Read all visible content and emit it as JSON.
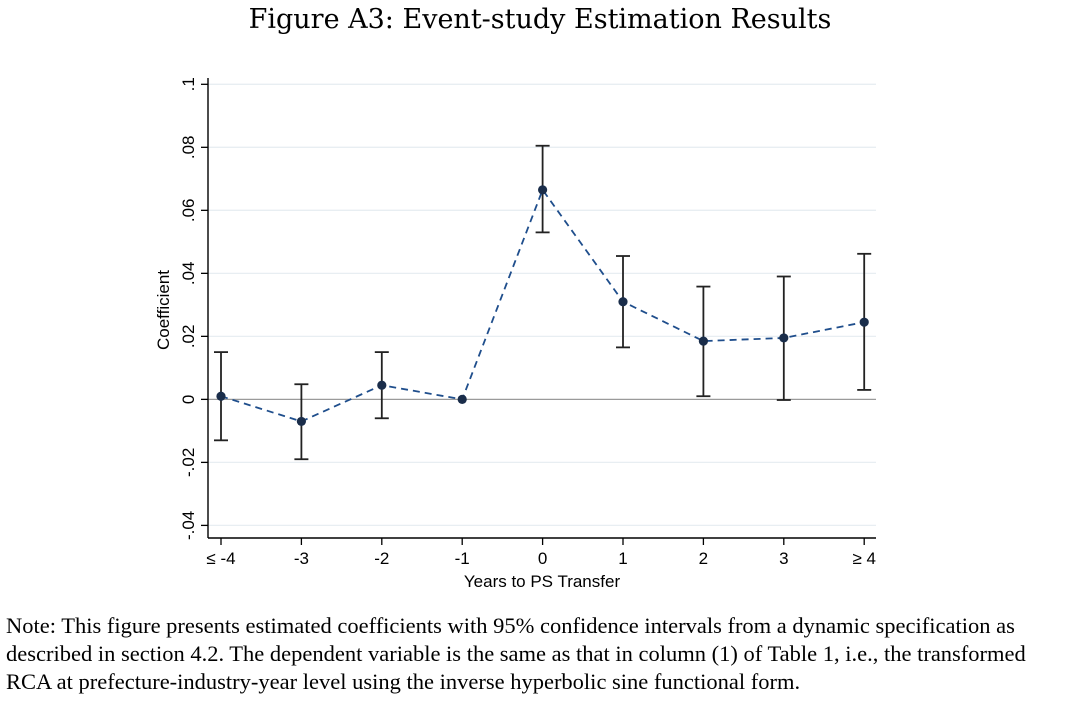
{
  "figure": {
    "title": "Figure A3: Event-study Estimation Results",
    "note": "Note: This figure presents estimated coefficients with 95% confidence intervals from a dynamic specification as described in section 4.2. The dependent variable is the same as that in column (1) of Table 1, i.e., the transformed RCA at prefecture-industry-year level using the inverse hyperbolic sine functional form."
  },
  "chart_data": {
    "type": "scatter",
    "title": "",
    "xlabel": "Years to PS Transfer",
    "ylabel": "Coefficient",
    "categories": [
      "≤ -4",
      "-3",
      "-2",
      "-1",
      "0",
      "1",
      "2",
      "3",
      "≥ 4"
    ],
    "y_ticks": [
      -0.04,
      -0.02,
      0,
      0.02,
      0.04,
      0.06,
      0.08,
      0.1
    ],
    "y_tick_labels": [
      "-.04",
      "-.02",
      "0",
      ".02",
      ".04",
      ".06",
      ".08",
      ".1"
    ],
    "ylim": [
      -0.044,
      0.102
    ],
    "grid": true,
    "reference_line_y": 0,
    "series": [
      {
        "values": [
          0.001,
          -0.007,
          0.0045,
          0.0,
          0.0665,
          0.031,
          0.0185,
          0.0195,
          0.0245
        ],
        "ci_low": [
          -0.013,
          -0.019,
          -0.006,
          0.0,
          0.053,
          0.0165,
          0.001,
          -0.0002,
          0.003
        ],
        "ci_high": [
          0.015,
          0.0048,
          0.015,
          0.0,
          0.0805,
          0.0455,
          0.0358,
          0.039,
          0.0462
        ],
        "line_style": "dashed",
        "line_color": "#1f4e8c",
        "marker_color": "#1a2d4a"
      }
    ]
  }
}
